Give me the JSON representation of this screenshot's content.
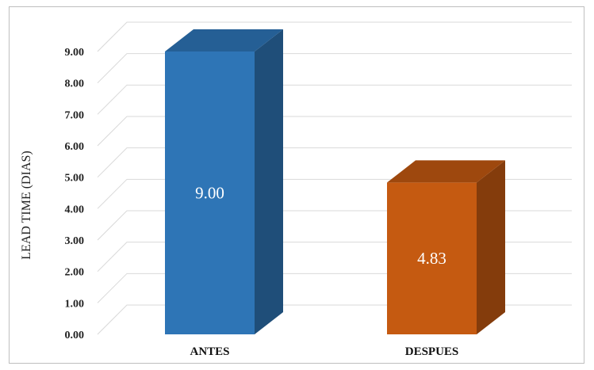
{
  "chart_data": {
    "type": "bar",
    "style": "3d-column",
    "categories": [
      "ANTES",
      "DESPUES"
    ],
    "values": [
      9.0,
      4.83
    ],
    "data_labels": [
      "9.00",
      "4.83"
    ],
    "ylabel": "LEAD TIME (DIAS)",
    "xlabel": "",
    "title": "",
    "ylim": [
      0,
      9
    ],
    "yticks": [
      "0.00",
      "1.00",
      "2.00",
      "3.00",
      "4.00",
      "5.00",
      "6.00",
      "7.00",
      "8.00",
      "9.00"
    ],
    "grid": true,
    "legend": "none",
    "colors": {
      "ANTES": {
        "front": "#2e75b6",
        "side": "#1f4e79",
        "top": "#255f95"
      },
      "DESPUES": {
        "front": "#c55a11",
        "side": "#843c0c",
        "top": "#9e480e"
      },
      "grid": "#d9d9d9"
    }
  }
}
